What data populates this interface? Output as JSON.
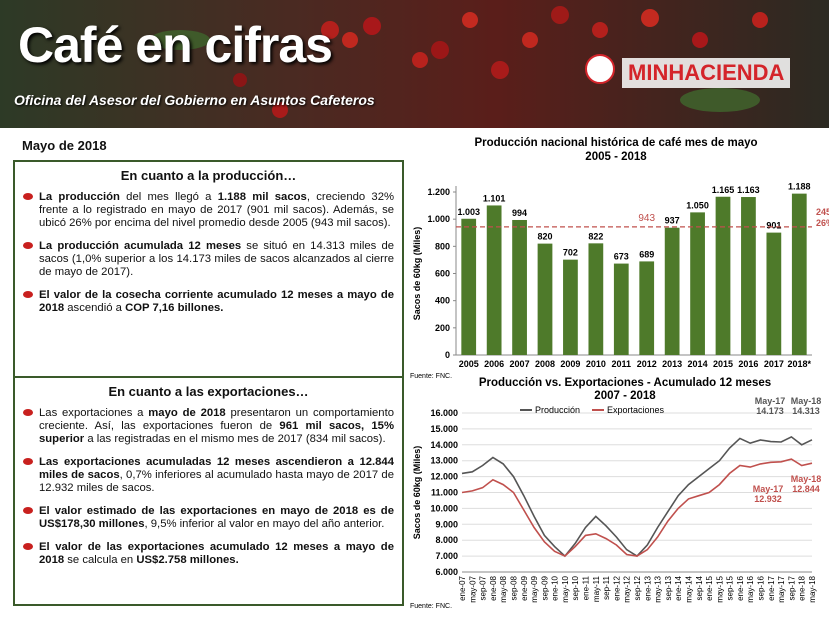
{
  "header": {
    "title": "Café en cifras",
    "subtitle": "Oficina del Asesor del Gobierno en Asuntos Cafeteros",
    "logo": "MINHACIENDA"
  },
  "date": "Mayo de 2018",
  "sections": [
    {
      "heading": "En cuanto a la producción…",
      "paragraphs": [
        [
          {
            "text": "La producción",
            "bold": true
          },
          {
            "text": " del mes llegó a ",
            "bold": false
          },
          {
            "text": "1.188 mil sacos",
            "bold": true
          },
          {
            "text": ", creciendo 32% frente a lo registrado en mayo de 2017 (901 mil sacos). Además, se ubicó 26% por encima del nivel promedio desde 2005 (943 mil sacos).",
            "bold": false
          }
        ],
        [
          {
            "text": "La producción acumulada 12 meses",
            "bold": true
          },
          {
            "text": " se situó en 14.313 miles de sacos (1,0% superior a los 14.173 miles de sacos alcanzados al cierre de mayo de 2017).",
            "bold": false
          }
        ],
        [
          {
            "text": "El valor de la cosecha corriente acumulado 12 meses a mayo de 2018",
            "bold": true
          },
          {
            "text": " ascendió a ",
            "bold": false
          },
          {
            "text": "COP 7,16 billones.",
            "bold": true
          }
        ]
      ]
    },
    {
      "heading": "En cuanto a las exportaciones…",
      "paragraphs": [
        [
          {
            "text": "Las exportaciones a ",
            "bold": false
          },
          {
            "text": "mayo de 2018",
            "bold": true
          },
          {
            "text": " presentaron un comportamiento creciente. Así, las exportaciones fueron de ",
            "bold": false
          },
          {
            "text": "961 mil sacos, 15% superior",
            "bold": true
          },
          {
            "text": " a las registradas en el mismo mes de 2017 (834 mil sacos).",
            "bold": false
          }
        ],
        [
          {
            "text": "Las exportaciones acumuladas 12 meses ascendieron a 12.844 miles de sacos",
            "bold": true
          },
          {
            "text": ", 0,7% inferiores al acumulado hasta mayo de 2017 de 12.932 miles de sacos.",
            "bold": false
          }
        ],
        [
          {
            "text": "El valor estimado de las exportaciones en mayo de 2018 es de US$178,30 millones",
            "bold": true
          },
          {
            "text": ", 9,5% inferior al valor en mayo del año anterior.",
            "bold": false
          }
        ],
        [
          {
            "text": "El valor de las exportaciones acumulado 12 meses a mayo de 2018",
            "bold": true
          },
          {
            "text": " se calcula en ",
            "bold": false
          },
          {
            "text": "US$2.758 millones.",
            "bold": true
          }
        ]
      ]
    }
  ],
  "chart_data": [
    {
      "type": "bar",
      "title": "Producción nacional histórica de café mes de mayo",
      "subtitle": "2005 - 2018",
      "y_label": "Sacos de 60kg (Miles)",
      "categories": [
        "2005",
        "2006",
        "2007",
        "2008",
        "2009",
        "2010",
        "2011",
        "2012",
        "2013",
        "2014",
        "2015",
        "2016",
        "2017",
        "2018*"
      ],
      "values": [
        1003,
        1101,
        994,
        820,
        702,
        822,
        673,
        689,
        937,
        1050,
        1165,
        1163,
        901,
        1188
      ],
      "value_labels": [
        "1.003",
        "1.101",
        "994",
        "820",
        "702",
        "822",
        "673",
        "689",
        "937",
        "1.050",
        "1.165",
        "1.163",
        "901",
        "1.188"
      ],
      "color": "#4e7a2a",
      "ylim": [
        0,
        1200
      ],
      "yticks": [
        0,
        200,
        400,
        600,
        800,
        {
          "value": 1000,
          "label": "1.000"
        },
        {
          "value": 1200,
          "label": "1.200"
        }
      ],
      "average": 943,
      "average_color": "#c0504d",
      "annotations": [
        "245",
        "26%"
      ],
      "source": "Fuente: FNC."
    },
    {
      "type": "line",
      "title": "Producción vs. Exportaciones - Acumulado 12 meses",
      "subtitle": "2007 - 2018",
      "y_label": "Sacos de 60kg (Miles)",
      "categories": [
        "ene-07",
        "may-07",
        "sep-07",
        "ene-08",
        "may-08",
        "sep-08",
        "ene-09",
        "may-09",
        "sep-09",
        "ene-10",
        "may-10",
        "sep-10",
        "ene-11",
        "may-11",
        "sep-11",
        "ene-12",
        "may-12",
        "sep-12",
        "ene-13",
        "may-13",
        "sep-13",
        "ene-14",
        "may-14",
        "sep-14",
        "ene-15",
        "may-15",
        "sep-15",
        "ene-16",
        "may-16",
        "sep-16",
        "ene-17",
        "may-17",
        "sep-17",
        "ene-18",
        "may-18"
      ],
      "series": [
        {
          "name": "Producción",
          "color": "#555555",
          "values": [
            12200,
            12300,
            12700,
            13200,
            12800,
            12000,
            10800,
            9500,
            8300,
            7600,
            7000,
            7800,
            8800,
            9500,
            8900,
            8200,
            7400,
            7000,
            7700,
            8800,
            9800,
            10800,
            11500,
            12000,
            12500,
            13000,
            13800,
            14400,
            14100,
            14300,
            14200,
            14173,
            14500,
            14000,
            14313
          ]
        },
        {
          "name": "Exportaciones",
          "color": "#c0504d",
          "values": [
            11000,
            11100,
            11300,
            11800,
            11500,
            11000,
            9900,
            8800,
            7900,
            7300,
            7000,
            7600,
            8300,
            8400,
            8100,
            7700,
            7100,
            7000,
            7400,
            8200,
            9200,
            10000,
            10600,
            10800,
            11000,
            11500,
            12200,
            12700,
            12600,
            12800,
            12900,
            12932,
            13100,
            12700,
            12844
          ]
        }
      ],
      "ylim": [
        6000,
        16000
      ],
      "yticks": [
        {
          "value": 6000,
          "label": "6.000"
        },
        {
          "value": 7000,
          "label": "7.000"
        },
        {
          "value": 8000,
          "label": "8.000"
        },
        {
          "value": 9000,
          "label": "9.000"
        },
        {
          "value": 10000,
          "label": "10.000"
        },
        {
          "value": 11000,
          "label": "11.000"
        },
        {
          "value": 12000,
          "label": "12.000"
        },
        {
          "value": 13000,
          "label": "13.000"
        },
        {
          "value": 14000,
          "label": "14.000"
        },
        {
          "value": 15000,
          "label": "15.000"
        },
        {
          "value": 16000,
          "label": "16.000"
        }
      ],
      "grid": true,
      "annotations": [
        {
          "lines": [
            "May-17",
            "14.173"
          ]
        },
        {
          "lines": [
            "May-18",
            "14.313"
          ]
        },
        {
          "lines": [
            "May-17",
            "12.932"
          ]
        },
        {
          "lines": [
            "May-18",
            "12.844"
          ]
        }
      ],
      "source": "Fuente: FNC."
    }
  ]
}
